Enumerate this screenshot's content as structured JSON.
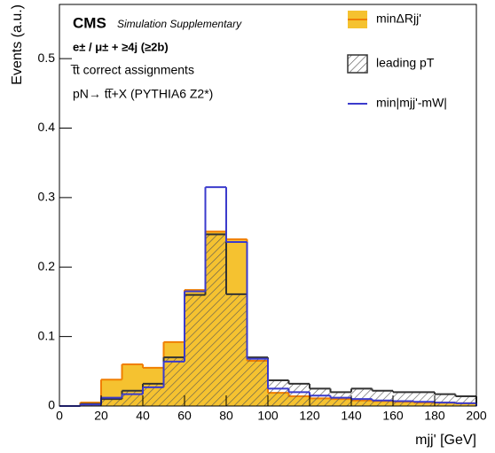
{
  "chart_data": {
    "type": "histogram",
    "title": "CMS",
    "subtitle": "Simulation Supplementary",
    "annotations": [
      "e± / μ± + ≥4j (≥2b)",
      "t̅t correct assignments",
      "pN→ tt̅+X (PYTHIA6 Z2*)"
    ],
    "x_label": "mjj' [GeV]",
    "y_label": "Events (a.u.)",
    "bins": [
      0,
      10,
      20,
      30,
      40,
      50,
      60,
      70,
      80,
      90,
      100,
      110,
      120,
      130,
      140,
      150,
      160,
      170,
      180,
      190,
      200
    ],
    "series": [
      {
        "name": "minΔRjj'",
        "color": "#f5c230",
        "edge": "#f07f00",
        "style": "filled",
        "values": [
          0,
          0.005,
          0.038,
          0.06,
          0.055,
          0.092,
          0.167,
          0.251,
          0.24,
          0.065,
          0.019,
          0.014,
          0.011,
          0.01,
          0.008,
          0.007,
          0.006,
          0.005,
          0.005,
          0.004
        ]
      },
      {
        "name": "leading pT",
        "color": "#333333",
        "style": "hatched",
        "values": [
          0,
          0.003,
          0.01,
          0.022,
          0.032,
          0.07,
          0.16,
          0.247,
          0.161,
          0.07,
          0.037,
          0.032,
          0.025,
          0.02,
          0.025,
          0.022,
          0.02,
          0.02,
          0.017,
          0.014
        ]
      },
      {
        "name": "min|mjj'-mW|",
        "color": "#3b3bcc",
        "style": "line",
        "values": [
          0,
          0.002,
          0.012,
          0.017,
          0.027,
          0.064,
          0.165,
          0.315,
          0.236,
          0.068,
          0.025,
          0.02,
          0.015,
          0.012,
          0.01,
          0.008,
          0.007,
          0.006,
          0.005,
          0.004
        ]
      }
    ],
    "xlim": [
      0,
      200
    ],
    "xticks": [
      0,
      20,
      40,
      60,
      80,
      100,
      120,
      140,
      160,
      180,
      200
    ],
    "ylim": [
      0,
      0.578
    ],
    "yticks": [
      0,
      0.1,
      0.2,
      0.3,
      0.4,
      0.5
    ],
    "legend": "upper right"
  }
}
